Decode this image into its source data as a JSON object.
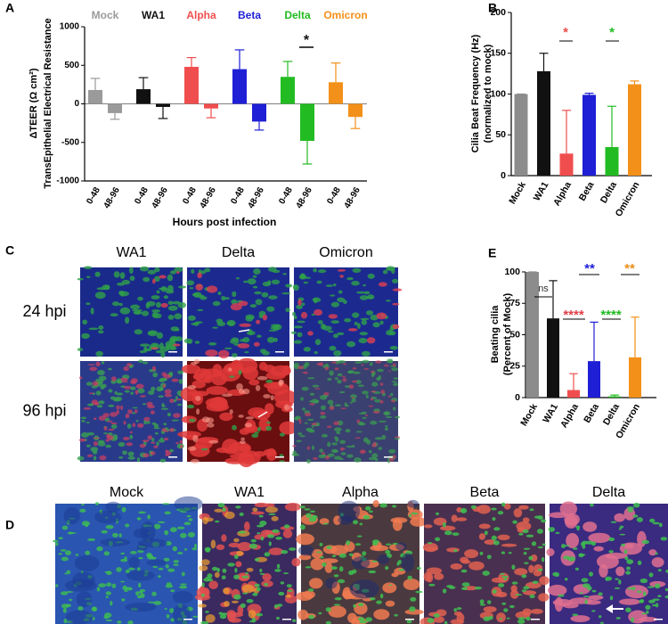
{
  "panel_labels": [
    "A",
    "B",
    "C",
    "D",
    "E"
  ],
  "chart_data": [
    {
      "type": "grouped_bar",
      "y_label": "ΔTEER (Ω cm²)",
      "y_label_2": "TransEpithelial Electrical Resistance",
      "x_label": "Hours post infection",
      "ylim": [
        -1000,
        1000
      ],
      "yticks": [
        -1000,
        -500,
        0,
        500,
        1000
      ],
      "groups": [
        {
          "name": "Mock",
          "color": "#9a9a9a",
          "categories": [
            "0-48",
            "48-96"
          ],
          "values": [
            180,
            -120
          ],
          "errors": [
            150,
            80
          ]
        },
        {
          "name": "WA1",
          "color": "#111111",
          "categories": [
            "0-48",
            "48-96"
          ],
          "values": [
            190,
            -40
          ],
          "errors": [
            150,
            150
          ]
        },
        {
          "name": "Alpha",
          "color": "#f04e4e",
          "categories": [
            "0-48",
            "48-96"
          ],
          "values": [
            480,
            -60
          ],
          "errors": [
            120,
            120
          ]
        },
        {
          "name": "Beta",
          "color": "#1f1fd6",
          "categories": [
            "0-48",
            "48-96"
          ],
          "values": [
            450,
            -230
          ],
          "errors": [
            250,
            110
          ]
        },
        {
          "name": "Delta",
          "color": "#22bb22",
          "categories": [
            "0-48",
            "48-96"
          ],
          "values": [
            350,
            -480
          ],
          "errors": [
            200,
            300
          ]
        },
        {
          "name": "Omicron",
          "color": "#f39019",
          "categories": [
            "0-48",
            "48-96"
          ],
          "values": [
            280,
            -170
          ],
          "errors": [
            250,
            150
          ]
        }
      ],
      "annotations": [
        {
          "text": "*",
          "color": "#111111"
        }
      ]
    },
    {
      "type": "bar",
      "y_label": "Cilia Beat Frequency (Hz)",
      "y_label_2": "(normalized to mock)",
      "categories": [
        "Mock",
        "WA1",
        "Alpha",
        "Beta",
        "Delta",
        "Omicron"
      ],
      "colors": [
        "#8c8c8c",
        "#111111",
        "#f04e4e",
        "#1f1fd6",
        "#22bb22",
        "#f39019"
      ],
      "values": [
        100,
        128,
        27,
        99,
        35,
        112
      ],
      "errors": [
        0,
        22,
        53,
        2,
        50,
        4
      ],
      "ylim": [
        0,
        200
      ],
      "yticks": [
        0,
        50,
        100,
        150,
        200
      ],
      "annotations": [
        {
          "text": "*",
          "color": "#f04e4e"
        },
        {
          "text": "*",
          "color": "#22bb22"
        }
      ]
    },
    {
      "type": "bar",
      "y_label": "Beating cilia",
      "y_label_2": "(Percent of Mock)",
      "categories": [
        "Mock",
        "WA1",
        "Alpha",
        "Beta",
        "Delta",
        "Omicron"
      ],
      "colors": [
        "#8c8c8c",
        "#111111",
        "#f04e4e",
        "#1f1fd6",
        "#22bb22",
        "#f39019"
      ],
      "values": [
        100,
        63,
        6,
        29,
        1,
        32
      ],
      "errors": [
        0,
        30,
        13,
        31,
        1,
        32
      ],
      "ylim": [
        0,
        100
      ],
      "yticks": [
        0,
        25,
        50,
        75,
        100
      ],
      "annotations": [
        {
          "text": "ns",
          "color": "#333333"
        },
        {
          "text": "****",
          "color": "#e0404a"
        },
        {
          "text": "**",
          "color": "#1f1fd6"
        },
        {
          "text": "****",
          "color": "#22bb22"
        },
        {
          "text": "**",
          "color": "#e8901c"
        }
      ]
    }
  ],
  "image_panels": {
    "C": {
      "columns": [
        "WA1",
        "Delta",
        "Omicron"
      ],
      "rows": [
        "24 hpi",
        "96 hpi"
      ]
    },
    "D": {
      "columns": [
        "Mock",
        "WA1",
        "Alpha",
        "Beta",
        "Delta"
      ]
    }
  }
}
